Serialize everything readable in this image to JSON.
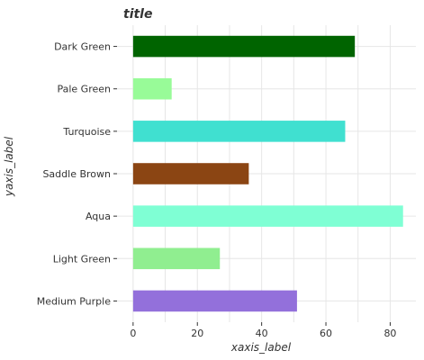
{
  "chart_data": {
    "type": "bar",
    "orientation": "horizontal",
    "title": "title",
    "xlabel": "xaxis_label",
    "ylabel": "yaxis_label",
    "categories": [
      "Medium Purple",
      "Light Green",
      "Aqua",
      "Saddle Brown",
      "Turquoise",
      "Pale Green",
      "Dark Green"
    ],
    "values": [
      51,
      27,
      84,
      36,
      66,
      12,
      69
    ],
    "colors": [
      "#9370DB",
      "#90EE90",
      "#7FFFD4",
      "#8B4513",
      "#40E0D0",
      "#98FB98",
      "#006400"
    ],
    "xlim": [
      -5,
      88
    ],
    "xticks": [
      0,
      20,
      40,
      60,
      80
    ],
    "grid": true,
    "legend": "none"
  }
}
